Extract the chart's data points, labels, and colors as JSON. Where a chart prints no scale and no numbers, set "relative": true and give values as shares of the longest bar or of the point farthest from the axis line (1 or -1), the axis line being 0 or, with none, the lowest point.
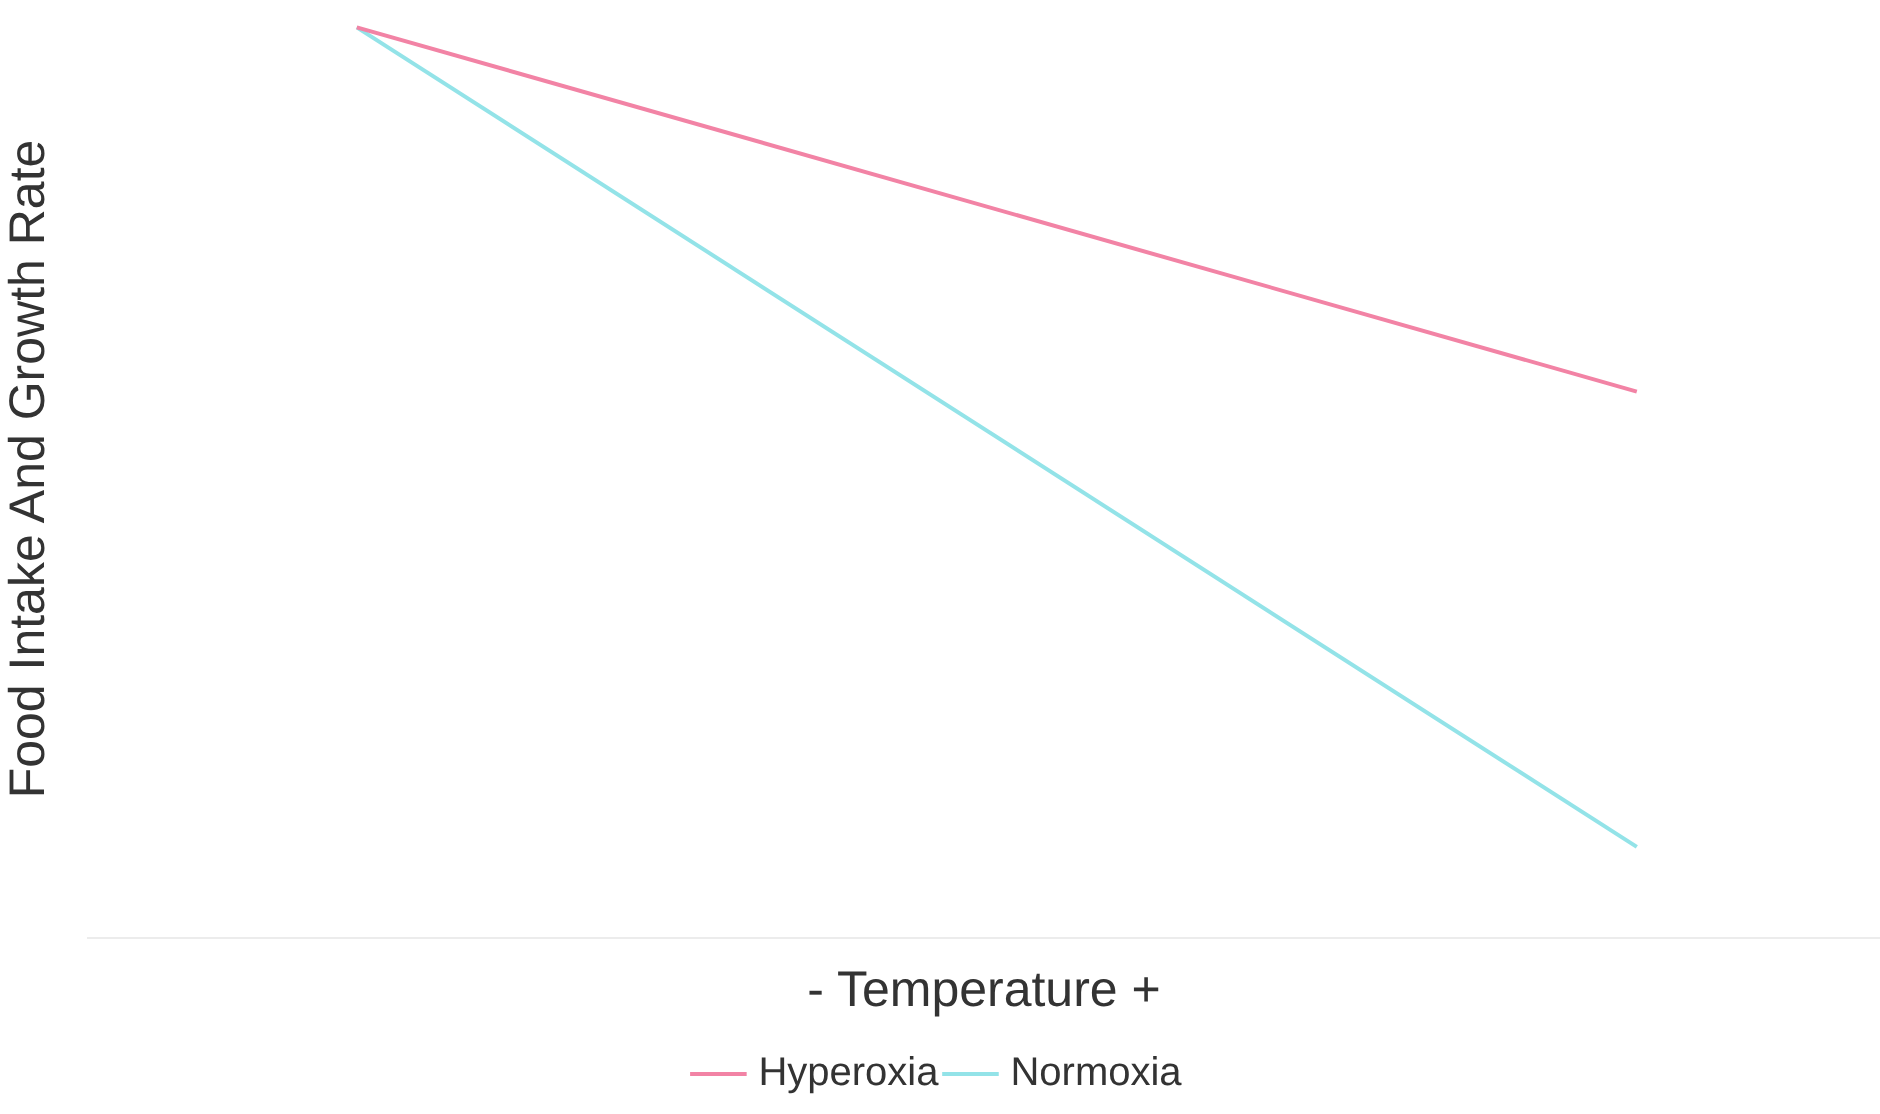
{
  "chart_data": {
    "type": "line",
    "relative": true,
    "xlabel": "- Temperature +",
    "ylabel": "Food Intake And Growth Rate",
    "categories": [
      null,
      null
    ],
    "legend": "bottom",
    "grid": false,
    "marker": "none",
    "series": [
      {
        "name": "Hyperoxia",
        "color": "#f283a5",
        "values": [
          1,
          0.6
        ]
      },
      {
        "name": "Normoxia",
        "color": "#93e3e8",
        "values": [
          1,
          0.1
        ]
      }
    ]
  }
}
